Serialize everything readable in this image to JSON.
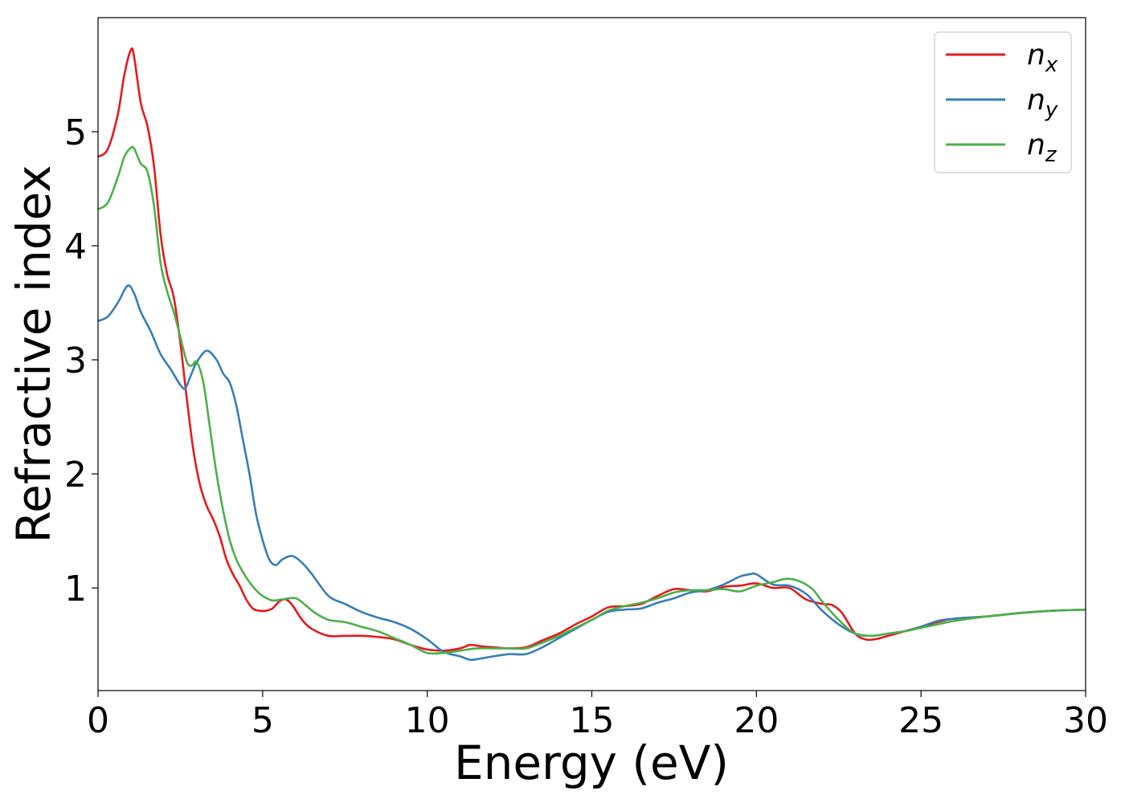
{
  "chart_data": {
    "type": "line",
    "title": "",
    "xlabel": "Energy (eV)",
    "ylabel": "Refractive index",
    "xlim": [
      0,
      30
    ],
    "ylim": [
      0.1,
      6.0
    ],
    "xticks": [
      0,
      5,
      10,
      15,
      20,
      25,
      30
    ],
    "yticks": [
      1,
      2,
      3,
      4,
      5
    ],
    "grid": false,
    "legend_position": "top-right",
    "series": [
      {
        "name": "n",
        "sub": "x",
        "color": "#e41a1c",
        "x": [
          0,
          0.3,
          0.6,
          0.8,
          1.0,
          1.1,
          1.3,
          1.5,
          1.7,
          1.9,
          2.1,
          2.3,
          2.5,
          2.7,
          2.9,
          3.1,
          3.3,
          3.5,
          3.7,
          3.9,
          4.1,
          4.3,
          4.5,
          4.7,
          4.9,
          5.1,
          5.3,
          5.5,
          5.7,
          5.9,
          6.2,
          6.5,
          7.0,
          7.5,
          8.0,
          8.5,
          9.0,
          9.5,
          10.0,
          10.5,
          11.0,
          11.3,
          11.6,
          12.0,
          12.5,
          13.0,
          13.5,
          14.0,
          14.5,
          15.0,
          15.5,
          16.0,
          16.5,
          17.0,
          17.5,
          18.0,
          18.5,
          19.0,
          19.5,
          20.0,
          20.5,
          21.0,
          21.5,
          22.0,
          22.3,
          22.6,
          23.0,
          23.3,
          23.6,
          24.0,
          24.5,
          25.0,
          25.5,
          26.0,
          27.0,
          28.0,
          29.0,
          30.0
        ],
        "y": [
          4.78,
          4.85,
          5.15,
          5.5,
          5.72,
          5.65,
          5.25,
          5.05,
          4.7,
          4.1,
          3.75,
          3.55,
          3.15,
          2.65,
          2.2,
          1.9,
          1.72,
          1.6,
          1.45,
          1.25,
          1.12,
          1.02,
          0.9,
          0.82,
          0.8,
          0.8,
          0.82,
          0.88,
          0.9,
          0.85,
          0.72,
          0.64,
          0.58,
          0.58,
          0.58,
          0.57,
          0.55,
          0.5,
          0.46,
          0.45,
          0.47,
          0.5,
          0.49,
          0.48,
          0.47,
          0.48,
          0.54,
          0.6,
          0.68,
          0.75,
          0.83,
          0.84,
          0.86,
          0.93,
          0.99,
          0.98,
          0.97,
          1.01,
          1.02,
          1.04,
          1.0,
          1.0,
          0.9,
          0.86,
          0.85,
          0.78,
          0.6,
          0.55,
          0.55,
          0.58,
          0.62,
          0.66,
          0.7,
          0.73,
          0.75,
          0.78,
          0.8,
          0.81
        ]
      },
      {
        "name": "n",
        "sub": "y",
        "color": "#377eb8",
        "x": [
          0,
          0.3,
          0.6,
          0.9,
          1.1,
          1.3,
          1.6,
          1.9,
          2.2,
          2.5,
          2.65,
          2.8,
          3.0,
          3.3,
          3.6,
          3.8,
          4.0,
          4.2,
          4.4,
          4.6,
          4.8,
          5.0,
          5.2,
          5.4,
          5.6,
          5.9,
          6.2,
          6.5,
          7.0,
          7.5,
          8.0,
          8.5,
          9.0,
          9.5,
          10.0,
          10.5,
          11.0,
          11.3,
          11.6,
          12.0,
          12.5,
          13.0,
          13.5,
          14.0,
          14.5,
          15.0,
          15.5,
          16.0,
          16.5,
          17.0,
          17.5,
          18.0,
          18.5,
          19.0,
          19.5,
          19.8,
          20.0,
          20.5,
          21.0,
          21.5,
          22.0,
          22.5,
          23.0,
          23.5,
          24.0,
          24.5,
          25.0,
          25.5,
          26.0,
          27.0,
          28.0,
          29.0,
          30.0
        ],
        "y": [
          3.34,
          3.38,
          3.5,
          3.65,
          3.58,
          3.42,
          3.25,
          3.05,
          2.92,
          2.78,
          2.75,
          2.85,
          2.98,
          3.08,
          3.0,
          2.88,
          2.8,
          2.6,
          2.3,
          2.0,
          1.65,
          1.42,
          1.25,
          1.2,
          1.25,
          1.28,
          1.22,
          1.12,
          0.93,
          0.86,
          0.79,
          0.74,
          0.7,
          0.64,
          0.55,
          0.44,
          0.4,
          0.37,
          0.38,
          0.4,
          0.42,
          0.42,
          0.48,
          0.56,
          0.64,
          0.72,
          0.79,
          0.81,
          0.82,
          0.87,
          0.91,
          0.96,
          0.98,
          1.03,
          1.1,
          1.12,
          1.12,
          1.03,
          1.02,
          0.95,
          0.8,
          0.68,
          0.6,
          0.58,
          0.6,
          0.62,
          0.66,
          0.71,
          0.73,
          0.75,
          0.78,
          0.8,
          0.81
        ]
      },
      {
        "name": "n",
        "sub": "z",
        "color": "#4daf4a",
        "x": [
          0,
          0.3,
          0.6,
          0.8,
          1.0,
          1.1,
          1.3,
          1.5,
          1.7,
          1.9,
          2.1,
          2.3,
          2.5,
          2.7,
          2.85,
          3.0,
          3.2,
          3.4,
          3.6,
          3.8,
          4.0,
          4.2,
          4.4,
          4.6,
          4.8,
          5.0,
          5.3,
          5.6,
          6.0,
          6.3,
          6.6,
          7.0,
          7.5,
          8.0,
          8.5,
          9.0,
          9.5,
          10.0,
          10.5,
          11.0,
          11.5,
          12.0,
          12.5,
          13.0,
          13.5,
          14.0,
          14.5,
          15.0,
          15.5,
          16.0,
          16.5,
          17.0,
          17.5,
          18.0,
          18.5,
          19.0,
          19.5,
          20.0,
          20.5,
          20.9,
          21.3,
          21.7,
          22.0,
          22.5,
          23.0,
          23.5,
          24.0,
          24.5,
          25.0,
          25.5,
          26.0,
          27.0,
          28.0,
          29.0,
          30.0
        ],
        "y": [
          4.32,
          4.38,
          4.6,
          4.78,
          4.86,
          4.85,
          4.72,
          4.65,
          4.35,
          3.85,
          3.6,
          3.42,
          3.2,
          2.98,
          2.95,
          2.98,
          2.8,
          2.4,
          2.0,
          1.68,
          1.42,
          1.25,
          1.14,
          1.05,
          0.98,
          0.93,
          0.89,
          0.9,
          0.91,
          0.85,
          0.78,
          0.72,
          0.7,
          0.66,
          0.62,
          0.56,
          0.5,
          0.43,
          0.43,
          0.45,
          0.47,
          0.47,
          0.47,
          0.47,
          0.52,
          0.58,
          0.65,
          0.72,
          0.8,
          0.84,
          0.87,
          0.91,
          0.96,
          0.98,
          0.98,
          0.99,
          0.97,
          1.02,
          1.05,
          1.08,
          1.06,
          0.99,
          0.88,
          0.72,
          0.6,
          0.58,
          0.6,
          0.62,
          0.65,
          0.68,
          0.71,
          0.75,
          0.78,
          0.8,
          0.81
        ]
      }
    ]
  }
}
